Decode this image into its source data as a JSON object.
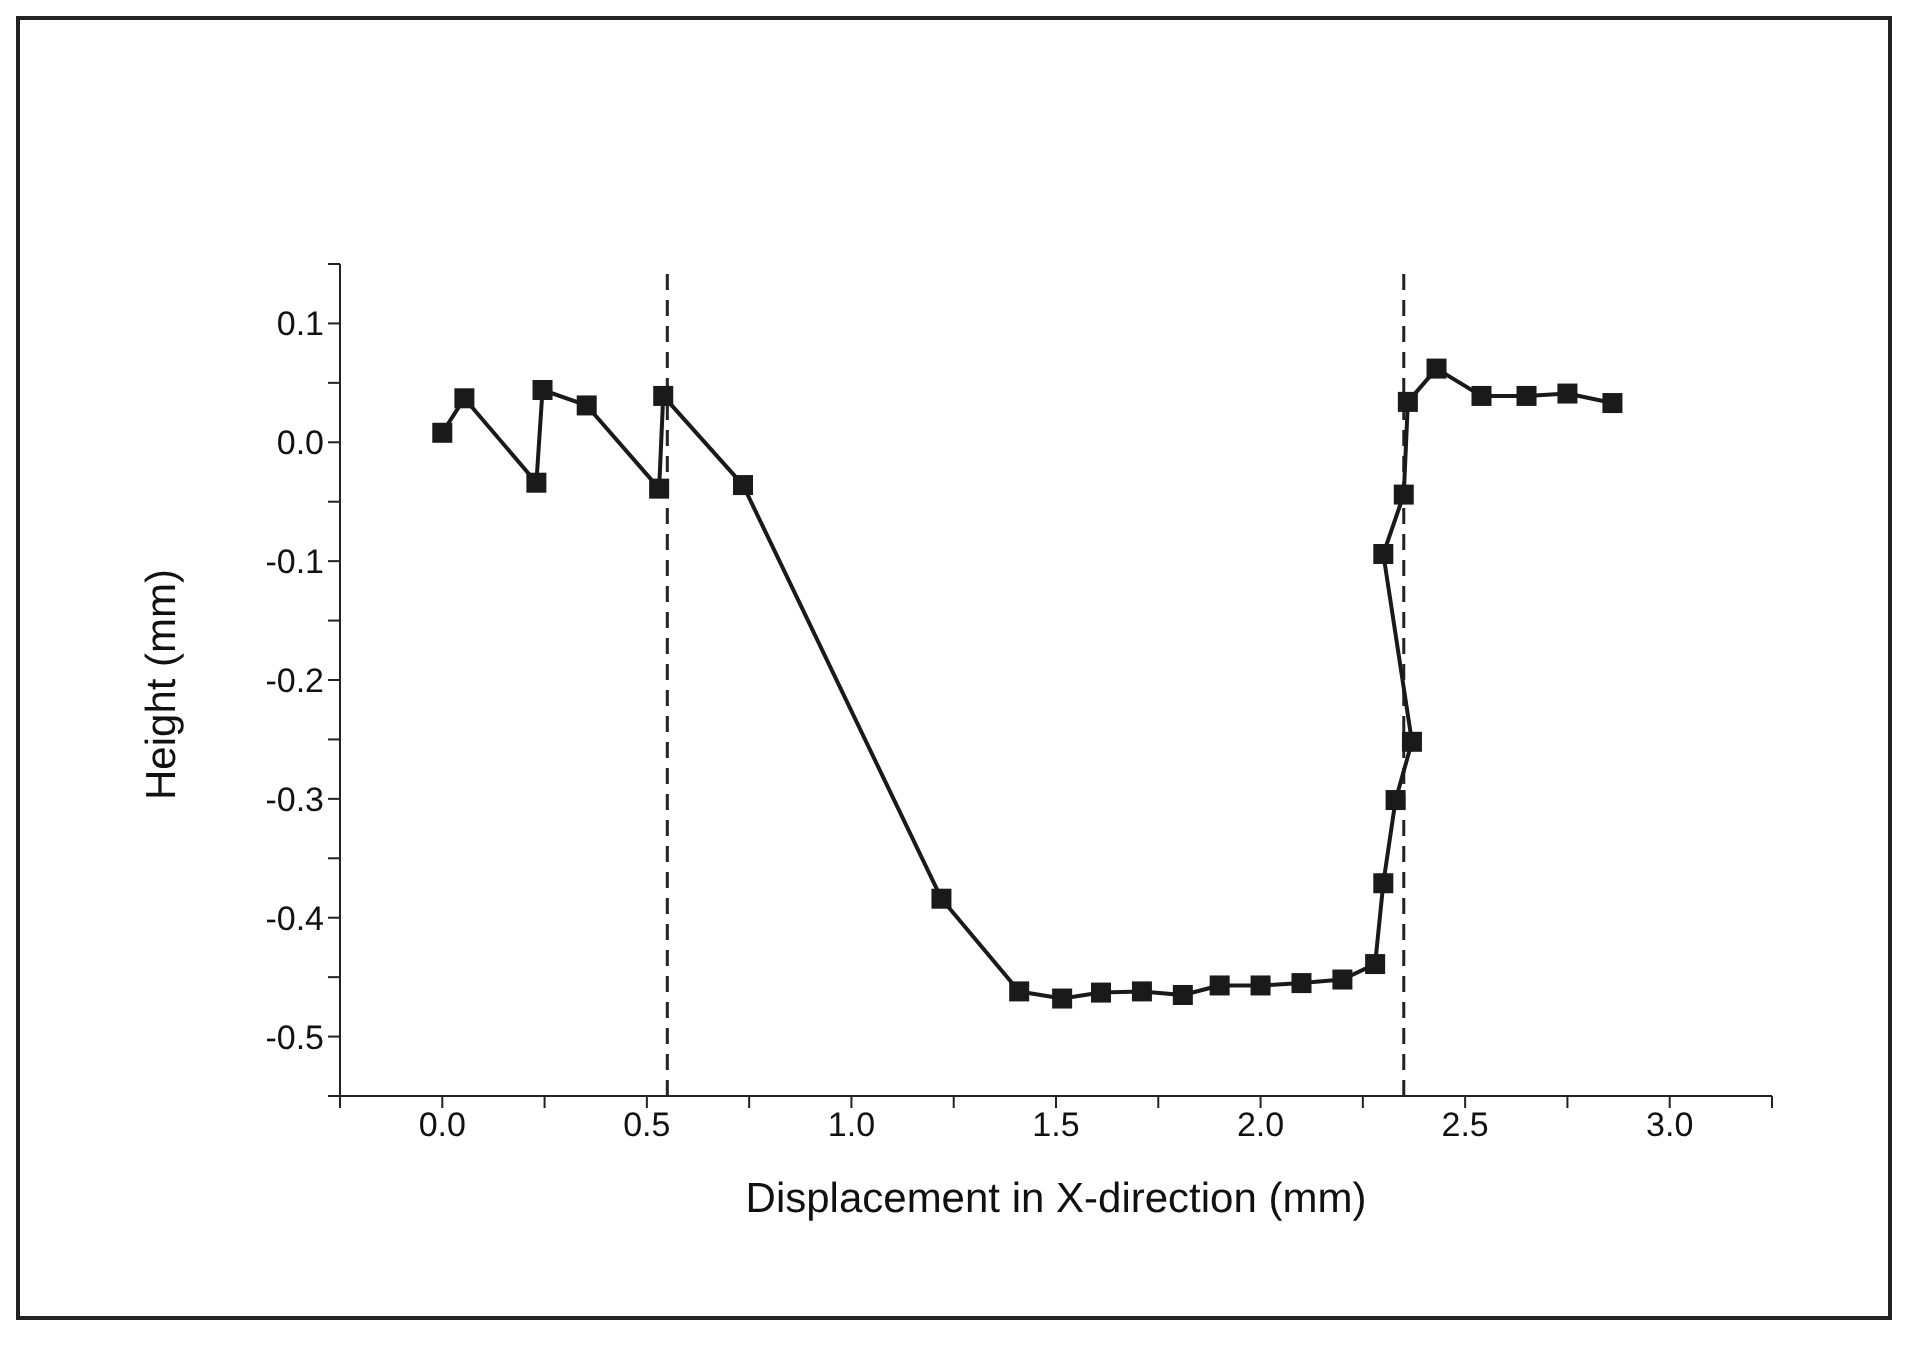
{
  "chart_data": {
    "type": "line",
    "xlabel": "Displacement in X-direction (mm)",
    "ylabel": "Height (mm)",
    "x": [
      0.0,
      0.054,
      0.23,
      0.245,
      0.353,
      0.53,
      0.54,
      0.735,
      1.22,
      1.41,
      1.515,
      1.61,
      1.71,
      1.81,
      1.9,
      2.0,
      2.1,
      2.2,
      2.28,
      2.3,
      2.33,
      2.37,
      2.3,
      2.35,
      2.36,
      2.43,
      2.54,
      2.65,
      2.75,
      2.86
    ],
    "series": [
      {
        "color": "#1a1a1a",
        "values": [
          0.008,
          0.037,
          -0.034,
          0.044,
          0.031,
          -0.039,
          0.039,
          -0.036,
          -0.384,
          -0.462,
          -0.468,
          -0.463,
          -0.462,
          -0.465,
          -0.457,
          -0.457,
          -0.455,
          -0.452,
          -0.439,
          -0.371,
          -0.301,
          -0.252,
          -0.094,
          -0.044,
          0.034,
          0.062,
          0.039,
          0.039,
          0.041,
          0.033
        ]
      }
    ],
    "xlim": [
      -0.25,
      3.25
    ],
    "ylim": [
      -0.55,
      0.15
    ],
    "xticks": [
      {
        "value": -0.25,
        "label": null
      },
      {
        "value": 0,
        "label": "0.0"
      },
      {
        "value": 0.25,
        "label": null
      },
      {
        "value": 0.5,
        "label": "0.5"
      },
      {
        "value": 0.75,
        "label": null
      },
      {
        "value": 1,
        "label": "1.0"
      },
      {
        "value": 1.25,
        "label": null
      },
      {
        "value": 1.5,
        "label": "1.5"
      },
      {
        "value": 1.75,
        "label": null
      },
      {
        "value": 2,
        "label": "2.0"
      },
      {
        "value": 2.25,
        "label": null
      },
      {
        "value": 2.5,
        "label": "2.5"
      },
      {
        "value": 2.75,
        "label": null
      },
      {
        "value": 3,
        "label": "3.0"
      },
      {
        "value": 3.25,
        "label": null
      }
    ],
    "yticks": [
      {
        "value": 0.15,
        "label": null
      },
      {
        "value": 0.1,
        "label": "0.1"
      },
      {
        "value": 0.05,
        "label": null
      },
      {
        "value": 0,
        "label": "0.0"
      },
      {
        "value": -0.05,
        "label": null
      },
      {
        "value": -0.1,
        "label": "-0.1"
      },
      {
        "value": -0.15,
        "label": null
      },
      {
        "value": -0.2,
        "label": "-0.2"
      },
      {
        "value": -0.25,
        "label": null
      },
      {
        "value": -0.3,
        "label": "-0.3"
      },
      {
        "value": -0.35,
        "label": null
      },
      {
        "value": -0.4,
        "label": "-0.4"
      },
      {
        "value": -0.45,
        "label": null
      },
      {
        "value": -0.5,
        "label": "-0.5"
      },
      {
        "value": -0.55,
        "label": null
      }
    ],
    "ref_lines": [
      {
        "axis": "x",
        "value": 0.55,
        "line_style": "dashed"
      },
      {
        "axis": "x",
        "value": 2.35,
        "line_style": "dashed"
      }
    ],
    "grid": false,
    "marker": "square",
    "line_style": "solid"
  }
}
